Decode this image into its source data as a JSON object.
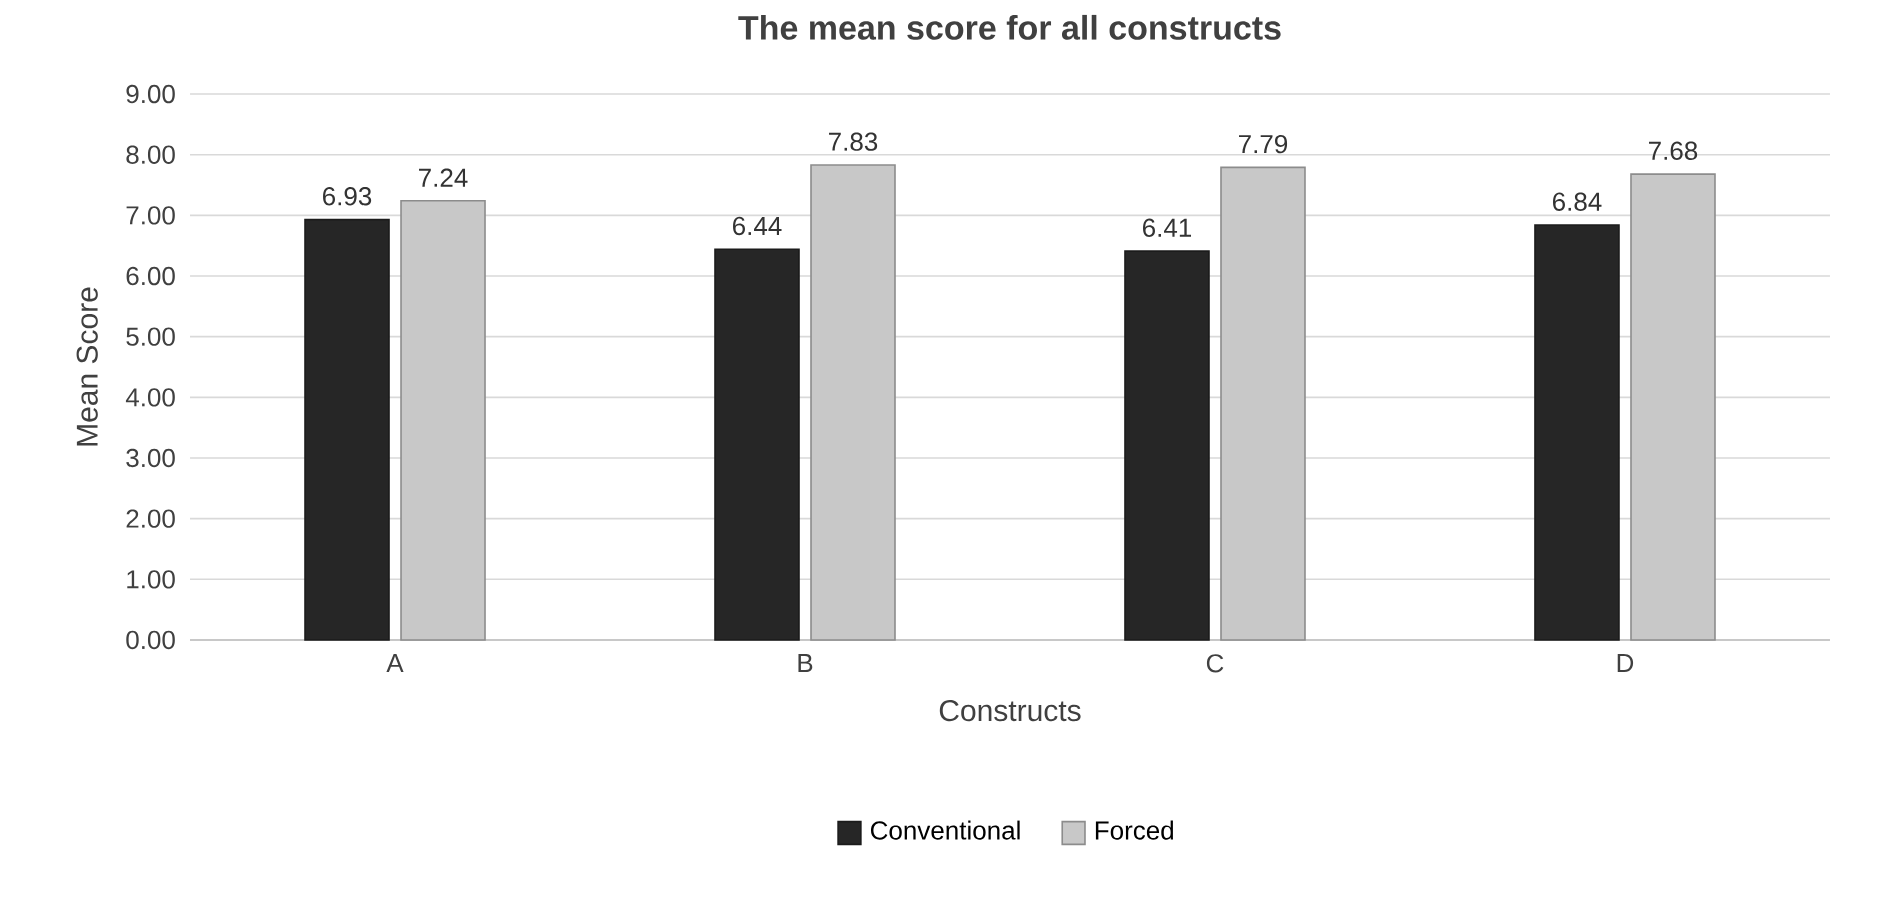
{
  "chart_data": {
    "type": "bar",
    "title": "The mean score for all constructs",
    "xlabel": "Constructs",
    "ylabel": "Mean Score",
    "categories": [
      "A",
      "B",
      "C",
      "D"
    ],
    "series": [
      {
        "name": "Conventional",
        "color": "#262626",
        "values": [
          6.93,
          6.44,
          6.41,
          6.84
        ]
      },
      {
        "name": "Forced",
        "color": "#c8c8c8",
        "values": [
          7.24,
          7.83,
          7.79,
          7.68
        ]
      }
    ],
    "ylim": [
      0,
      9
    ],
    "yticks": [
      {
        "value": 0,
        "label": "0.00"
      },
      {
        "value": 1,
        "label": "1.00"
      },
      {
        "value": 2,
        "label": "2.00"
      },
      {
        "value": 3,
        "label": "3.00"
      },
      {
        "value": 4,
        "label": "4.00"
      },
      {
        "value": 5,
        "label": "5.00"
      },
      {
        "value": 6,
        "label": "6.00"
      },
      {
        "value": 7,
        "label": "7.00"
      },
      {
        "value": 8,
        "label": "8.00"
      },
      {
        "value": 9,
        "label": "9.00"
      }
    ],
    "grid": "y",
    "legend": "bottom",
    "data_labels": true
  }
}
